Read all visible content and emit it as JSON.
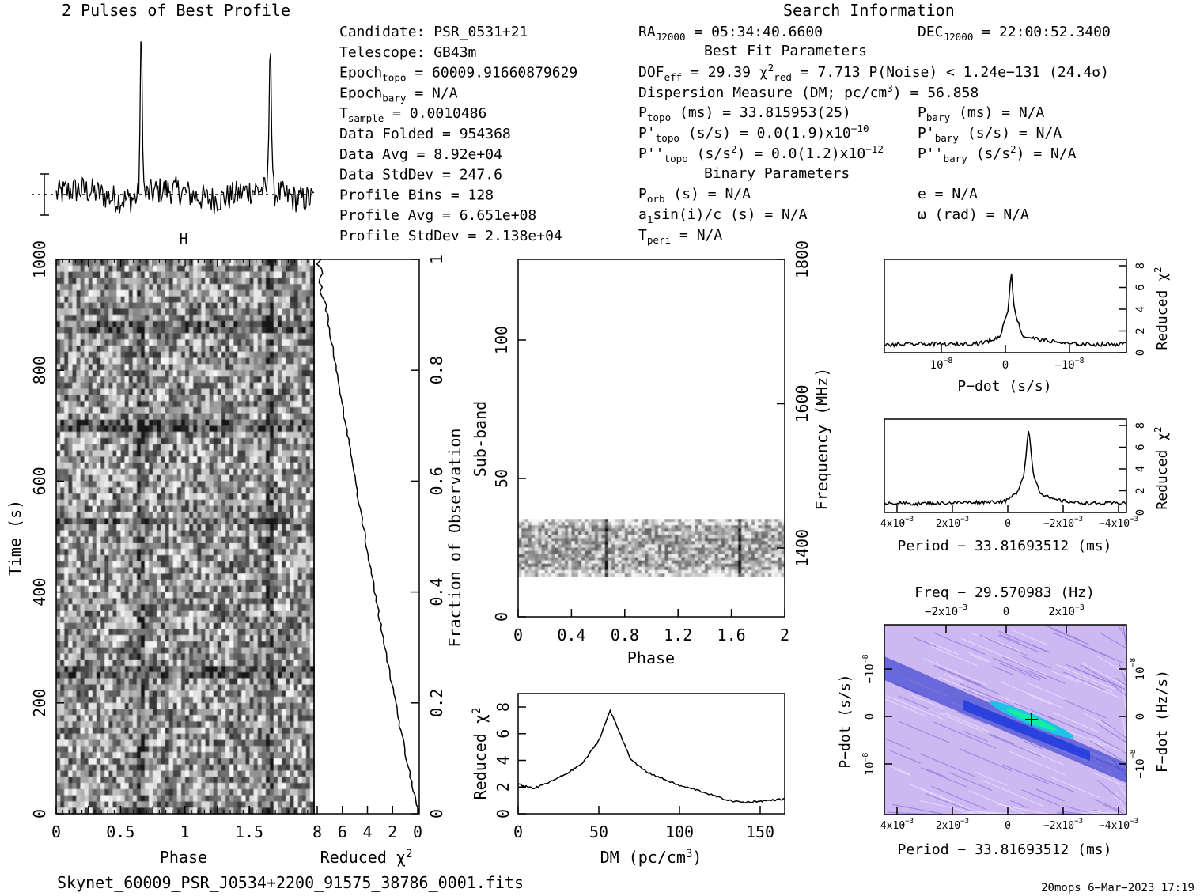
{
  "header": {
    "profile_title": "2 Pulses of Best Profile",
    "search_title": "Search Information",
    "best_fit_title": "Best Fit Parameters",
    "binary_title": "Binary Parameters"
  },
  "info_left": [
    "Candidate:  PSR_0531+21",
    "Telescope:  GB43m",
    "Epoch|topo| = 60009.91660879629",
    "Epoch|bary| = N/A",
    "T|sample|         =  0.0010486",
    "Data Folded    =  954368",
    "Data Avg       =  8.92e+04",
    "Data StdDev    =  247.6",
    "Profile Bins   =  128",
    "Profile Avg    =  6.651e+08",
    "Profile StdDev =  2.138e+04"
  ],
  "info_mid": {
    "ra": "RA|J2000| = 05:34:40.6600",
    "dof": "DOF|eff| = 29.39  χ^2^|red| = 7.713  P(Noise) < 1.24e−131  (24.4σ)",
    "dm": "Dispersion Measure (DM; pc/cm^3^) = 56.858",
    "ptopo": "P|topo| (ms) =  33.815953(25)",
    "pdtopo": "P'|topo| (s/s) = 0.0(1.9)x10^−10^",
    "pddtopo": "P''|topo| (s/s^2^) = 0.0(1.2)x10^−12^",
    "porb": "P|orb| (s) = N/A",
    "asini": "a|1|sin(i)/c (s) = N/A",
    "tperi": "T|peri| = N/A"
  },
  "info_right": {
    "dec": "DEC|J2000| = 22:00:52.3400",
    "pbary": "P|bary| (ms) = N/A",
    "pdbary": "P'|bary| (s/s) = N/A",
    "pddbary": "P''|bary| (s/s^2^) = N/A",
    "e": "e = N/A",
    "omega": "ω (rad) = N/A"
  },
  "panels": {
    "time_phase": {
      "xlabel": "Phase",
      "ylabel": "Time (s)",
      "xticks": [
        "0",
        "0.5",
        "1",
        "1.5"
      ],
      "yticks": [
        "0",
        "200",
        "400",
        "600",
        "800",
        "1000"
      ]
    },
    "chi_time": {
      "xlabel": "Reduced χ^2^",
      "ylabel": "Fraction of Observation",
      "xticks": [
        "8",
        "6",
        "4",
        "2",
        "0"
      ],
      "yticks": [
        "0",
        "0.2",
        "0.4",
        "0.6",
        "0.8",
        "1"
      ]
    },
    "subband": {
      "xlabel": "Phase",
      "ylabel": "Sub-band",
      "y2label": "Frequency (MHz)",
      "xticks": [
        "0",
        "0.4",
        "0.8",
        "1.2",
        "1.6",
        "2"
      ],
      "yticks": [
        "0",
        "50",
        "100"
      ],
      "y2ticks": [
        "1400",
        "1600",
        "1800"
      ]
    },
    "dm": {
      "xlabel": "DM (pc/cm^3^)",
      "ylabel": "Reduced χ^2^",
      "xticks": [
        "0",
        "50",
        "100",
        "150"
      ],
      "yticks": [
        "0",
        "2",
        "4",
        "6",
        "8"
      ]
    },
    "pdot": {
      "xlabel": "P−dot (s/s)",
      "ylabel": "Reduced χ^2^",
      "xticks": [
        "10^−8^",
        "0",
        "−10^−8^"
      ],
      "yticks": [
        "0",
        "2",
        "4",
        "6",
        "8"
      ]
    },
    "period": {
      "xlabel": "Period − 33.81693512 (ms)",
      "ylabel": "Reduced χ^2^",
      "xticks": [
        "4x10^−3^",
        "2x10^−3^",
        "0",
        "−2x10^−3^",
        "−4x10^−3^"
      ],
      "yticks": [
        "0",
        "2",
        "4",
        "6",
        "8"
      ]
    },
    "ppdot": {
      "title": "Freq − 29.570983 (Hz)",
      "xlabel": "Period − 33.81693512 (ms)",
      "ylabel": "P−dot (s/s)",
      "y2label": "F−dot (Hz/s)",
      "xticks": [
        "4x10^−3^",
        "2x10^−3^",
        "0",
        "−2x10^−3^",
        "−4x10^−3^"
      ],
      "top_ticks": [
        "−2x10^−3^",
        "0",
        "2x10^−3^"
      ],
      "yticks": [
        "10^−8^",
        "0",
        "−10^−8^"
      ],
      "y2ticks": [
        "−10^−8^",
        "0",
        "10^−8^"
      ]
    }
  },
  "footer": {
    "filename": "Skynet_60009_PSR_J0534+2200_91575_38786_0001.fits",
    "stamp": "20mops  6−Mar−2023 17:19"
  },
  "chart_data": [
    {
      "type": "line",
      "title": "2 Pulses of Best Profile",
      "x": [
        0.0,
        0.1,
        0.2,
        0.3,
        0.4,
        0.5,
        0.6,
        0.66,
        0.7,
        0.8,
        0.9,
        1.0,
        1.1,
        1.2,
        1.3,
        1.4,
        1.5,
        1.6,
        1.66,
        1.7,
        1.8,
        1.9,
        2.0
      ],
      "y": [
        0.05,
        0.3,
        0.0,
        -0.1,
        0.05,
        0.0,
        0.1,
        1.0,
        0.0,
        0.2,
        0.0,
        -0.1,
        0.3,
        0.0,
        -0.1,
        0.05,
        0.0,
        0.1,
        1.0,
        0.0,
        0.05,
        -0.05,
        -0.1
      ]
    },
    {
      "type": "line",
      "xlabel": "DM (pc/cm^3^)",
      "ylabel": "Reduced χ^2^",
      "xlim": [
        0,
        165
      ],
      "ylim": [
        0,
        9
      ],
      "x": [
        0,
        10,
        20,
        30,
        40,
        50,
        56.858,
        60,
        70,
        80,
        90,
        100,
        110,
        120,
        130,
        140,
        150,
        160,
        165
      ],
      "y": [
        2.2,
        1.9,
        2.4,
        3.0,
        3.8,
        5.5,
        7.7,
        6.9,
        4.0,
        3.1,
        2.6,
        2.1,
        1.8,
        1.4,
        1.0,
        0.85,
        0.95,
        1.05,
        1.1
      ]
    },
    {
      "type": "line",
      "xlabel": "P−dot (s/s)",
      "ylabel": "Reduced χ^2^",
      "ylim": [
        0,
        8.5
      ],
      "x": [
        -2.2e-08,
        -1.5e-08,
        -1e-08,
        -5e-09,
        -2e-09,
        -5e-10,
        0,
        5e-10,
        2e-09,
        5e-09,
        1e-08,
        1.5e-08,
        2e-08
      ],
      "y": [
        0.7,
        0.8,
        0.75,
        0.9,
        1.4,
        4.0,
        7.7,
        4.0,
        1.5,
        1.2,
        0.8,
        0.75,
        0.8
      ]
    },
    {
      "type": "line",
      "xlabel": "Period − 33.81693512 (ms)",
      "ylabel": "Reduced χ^2^",
      "ylim": [
        0,
        8.5
      ],
      "x": [
        0.0052,
        0.004,
        0.002,
        0.0,
        -0.0005,
        -0.0008,
        -0.001,
        -0.0012,
        -0.0015,
        -0.002,
        -0.003,
        -0.004,
        -0.0052
      ],
      "y": [
        0.9,
        0.8,
        0.9,
        1.0,
        1.8,
        3.5,
        7.7,
        3.5,
        1.8,
        1.2,
        0.9,
        0.8,
        0.9
      ]
    }
  ],
  "colors": {
    "ink": "#000000",
    "ppdot_bg": "#c8b4f0",
    "ppdot_band": "#2030d0",
    "ppdot_peak": "#10e0a0"
  }
}
